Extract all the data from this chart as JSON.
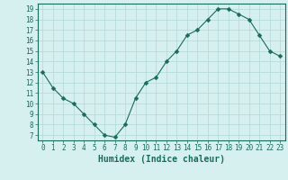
{
  "x": [
    0,
    1,
    2,
    3,
    4,
    5,
    6,
    7,
    8,
    9,
    10,
    11,
    12,
    13,
    14,
    15,
    16,
    17,
    18,
    19,
    20,
    21,
    22,
    23
  ],
  "y": [
    13,
    11.5,
    10.5,
    10,
    9,
    8,
    7,
    6.8,
    8,
    10.5,
    12,
    12.5,
    14,
    15,
    16.5,
    17,
    18,
    19,
    19,
    18.5,
    18,
    16.5,
    15,
    14.5
  ],
  "line_color": "#1a6b5a",
  "marker": "D",
  "marker_size": 2.5,
  "bg_color": "#d6f0f0",
  "grid_color": "#b0d8d8",
  "xlabel": "Humidex (Indice chaleur)",
  "ylim": [
    6.5,
    19.5
  ],
  "xlim": [
    -0.5,
    23.5
  ],
  "yticks": [
    7,
    8,
    9,
    10,
    11,
    12,
    13,
    14,
    15,
    16,
    17,
    18,
    19
  ],
  "xticks": [
    0,
    1,
    2,
    3,
    4,
    5,
    6,
    7,
    8,
    9,
    10,
    11,
    12,
    13,
    14,
    15,
    16,
    17,
    18,
    19,
    20,
    21,
    22,
    23
  ],
  "tick_label_size": 5.5,
  "xlabel_size": 7
}
